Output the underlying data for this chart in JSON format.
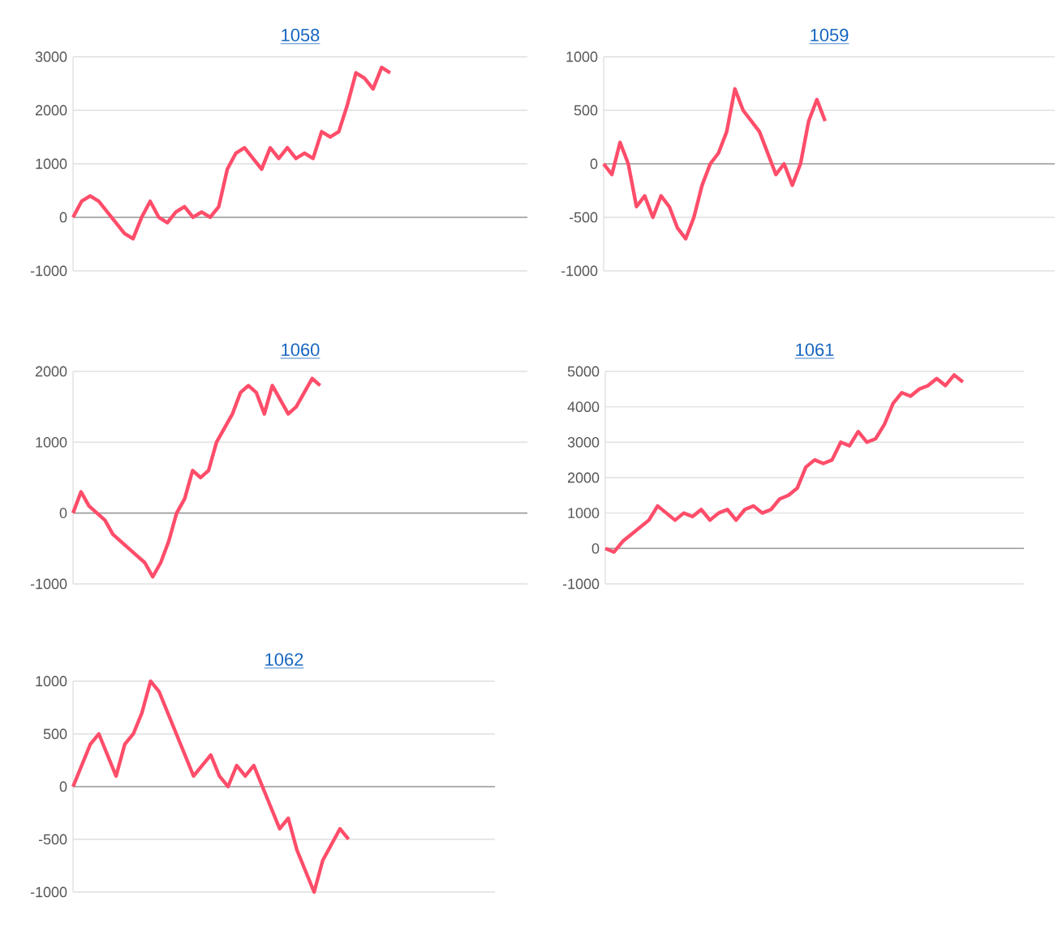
{
  "chart_data": [
    {
      "type": "line",
      "title": "1058",
      "color": "#ff4d6a",
      "ref_lines": [
        {
          "axis": "y",
          "value": 0,
          "color": "#9e9e9e"
        }
      ],
      "grid": "y",
      "tick_labels": "y",
      "ylim": [
        -1000,
        3000
      ],
      "yticks": [
        -1000,
        0,
        1000,
        2000,
        3000
      ],
      "categories": [
        null,
        null,
        null,
        null,
        null,
        null,
        null,
        null,
        null,
        null,
        null,
        null,
        null,
        null,
        null,
        null,
        null,
        null,
        null,
        null,
        null,
        null,
        null,
        null,
        null,
        null,
        null,
        null,
        null,
        null,
        null,
        null,
        null,
        null,
        null,
        null,
        null,
        null,
        null,
        null,
        null,
        null,
        null,
        null,
        null,
        null,
        null,
        null,
        null,
        null,
        null,
        null,
        null,
        null
      ],
      "values": [
        0,
        300,
        400,
        300,
        100,
        -100,
        -300,
        -400,
        0,
        300,
        0,
        -100,
        100,
        200,
        0,
        100,
        0,
        200,
        900,
        1200,
        1300,
        1100,
        900,
        1300,
        1100,
        1300,
        1100,
        1200,
        1100,
        1600,
        1500,
        1600,
        2100,
        2700,
        2600,
        2400,
        2800,
        2700,
        null,
        null,
        null,
        null,
        null,
        null,
        null,
        null,
        null,
        null,
        null,
        null,
        null,
        null,
        null,
        null
      ]
    },
    {
      "type": "line",
      "title": "1059",
      "color": "#ff4d6a",
      "ref_lines": [
        {
          "axis": "y",
          "value": 0,
          "color": "#9e9e9e"
        }
      ],
      "grid": "y",
      "tick_labels": "y",
      "ylim": [
        -1000,
        1000
      ],
      "yticks": [
        -1000,
        -500,
        0,
        500,
        1000
      ],
      "categories": [
        null,
        null,
        null,
        null,
        null,
        null,
        null,
        null,
        null,
        null,
        null,
        null,
        null,
        null,
        null,
        null,
        null,
        null,
        null,
        null,
        null,
        null,
        null,
        null,
        null,
        null,
        null,
        null,
        null,
        null,
        null,
        null,
        null,
        null,
        null,
        null,
        null,
        null,
        null,
        null,
        null,
        null,
        null,
        null,
        null,
        null,
        null,
        null,
        null,
        null,
        null,
        null,
        null,
        null,
        null,
        null
      ],
      "values": [
        0,
        -100,
        200,
        0,
        -400,
        -300,
        -500,
        -300,
        -400,
        -600,
        -700,
        -500,
        -200,
        0,
        100,
        300,
        700,
        500,
        400,
        300,
        100,
        -100,
        0,
        -200,
        0,
        400,
        600,
        400,
        null,
        null,
        null,
        null,
        null,
        null,
        null,
        null,
        null,
        null,
        null,
        null,
        null,
        null,
        null,
        null,
        null,
        null,
        null,
        null,
        null,
        null,
        null,
        null,
        null,
        null,
        null,
        null
      ]
    },
    {
      "type": "line",
      "title": "1060",
      "color": "#ff4d6a",
      "ref_lines": [
        {
          "axis": "y",
          "value": 0,
          "color": "#9e9e9e"
        }
      ],
      "grid": "y",
      "tick_labels": "y",
      "ylim": [
        -1000,
        2000
      ],
      "yticks": [
        -1000,
        0,
        1000,
        2000
      ],
      "categories": [
        null,
        null,
        null,
        null,
        null,
        null,
        null,
        null,
        null,
        null,
        null,
        null,
        null,
        null,
        null,
        null,
        null,
        null,
        null,
        null,
        null,
        null,
        null,
        null,
        null,
        null,
        null,
        null,
        null,
        null,
        null,
        null,
        null,
        null,
        null,
        null,
        null,
        null,
        null,
        null,
        null,
        null,
        null,
        null,
        null,
        null,
        null,
        null,
        null,
        null,
        null,
        null,
        null,
        null,
        null,
        null,
        null,
        null
      ],
      "values": [
        0,
        300,
        100,
        0,
        -100,
        -300,
        -400,
        -500,
        -600,
        -700,
        -900,
        -700,
        -400,
        0,
        200,
        600,
        500,
        600,
        1000,
        1200,
        1400,
        1700,
        1800,
        1700,
        1400,
        1800,
        1600,
        1400,
        1500,
        1700,
        1900,
        1800,
        null,
        null,
        null,
        null,
        null,
        null,
        null,
        null,
        null,
        null,
        null,
        null,
        null,
        null,
        null,
        null,
        null,
        null,
        null,
        null,
        null,
        null,
        null,
        null,
        null,
        null
      ]
    },
    {
      "type": "line",
      "title": "1061",
      "color": "#ff4d6a",
      "ref_lines": [
        {
          "axis": "y",
          "value": 0,
          "color": "#9e9e9e"
        }
      ],
      "grid": "y",
      "tick_labels": "y",
      "ylim": [
        -1000,
        5000
      ],
      "yticks": [
        -1000,
        0,
        1000,
        2000,
        3000,
        4000,
        5000
      ],
      "categories": [
        null,
        null,
        null,
        null,
        null,
        null,
        null,
        null,
        null,
        null,
        null,
        null,
        null,
        null,
        null,
        null,
        null,
        null,
        null,
        null,
        null,
        null,
        null,
        null,
        null,
        null,
        null,
        null,
        null,
        null,
        null,
        null,
        null,
        null,
        null,
        null,
        null,
        null,
        null,
        null,
        null,
        null,
        null,
        null,
        null,
        null,
        null,
        null,
        null
      ],
      "values": [
        0,
        -100,
        200,
        400,
        600,
        800,
        1200,
        1000,
        800,
        1000,
        900,
        1100,
        800,
        1000,
        1100,
        800,
        1100,
        1200,
        1000,
        1100,
        1400,
        1500,
        1700,
        2300,
        2500,
        2400,
        2500,
        3000,
        2900,
        3300,
        3000,
        3100,
        3500,
        4100,
        4400,
        4300,
        4500,
        4600,
        4800,
        4600,
        4900,
        4700,
        null,
        null,
        null,
        null,
        null,
        null,
        null
      ]
    },
    {
      "type": "line",
      "title": "1062",
      "color": "#ff4d6a",
      "ref_lines": [
        {
          "axis": "y",
          "value": 0,
          "color": "#9e9e9e"
        }
      ],
      "grid": "y",
      "tick_labels": "y",
      "ylim": [
        -1000,
        1000
      ],
      "yticks": [
        -1000,
        -500,
        0,
        500,
        1000
      ],
      "categories": [
        null,
        null,
        null,
        null,
        null,
        null,
        null,
        null,
        null,
        null,
        null,
        null,
        null,
        null,
        null,
        null,
        null,
        null,
        null,
        null,
        null,
        null,
        null,
        null,
        null,
        null,
        null,
        null,
        null,
        null,
        null,
        null,
        null,
        null,
        null,
        null,
        null,
        null,
        null,
        null,
        null,
        null,
        null,
        null,
        null,
        null,
        null,
        null,
        null,
        null
      ],
      "values": [
        0,
        200,
        400,
        500,
        300,
        100,
        400,
        500,
        700,
        1000,
        900,
        700,
        500,
        300,
        100,
        200,
        300,
        100,
        0,
        200,
        100,
        200,
        0,
        -200,
        -400,
        -300,
        -600,
        -800,
        -1000,
        -700,
        -550,
        -400,
        -500,
        null,
        null,
        null,
        null,
        null,
        null,
        null,
        null,
        null,
        null,
        null,
        null,
        null,
        null,
        null,
        null,
        null
      ]
    }
  ]
}
